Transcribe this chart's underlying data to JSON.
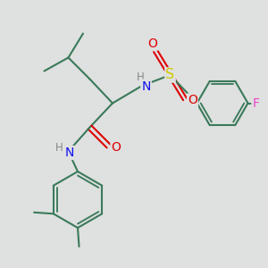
{
  "bg_color": "#dfe0e0",
  "bond_color": "#3a7a5a",
  "bond_width": 1.5,
  "atom_colors": {
    "N": "#1010ee",
    "O": "#dd0000",
    "S": "#cccc00",
    "F": "#ee44cc",
    "H": "#888888",
    "C": "#3a7a5a"
  },
  "fs": 9.5
}
